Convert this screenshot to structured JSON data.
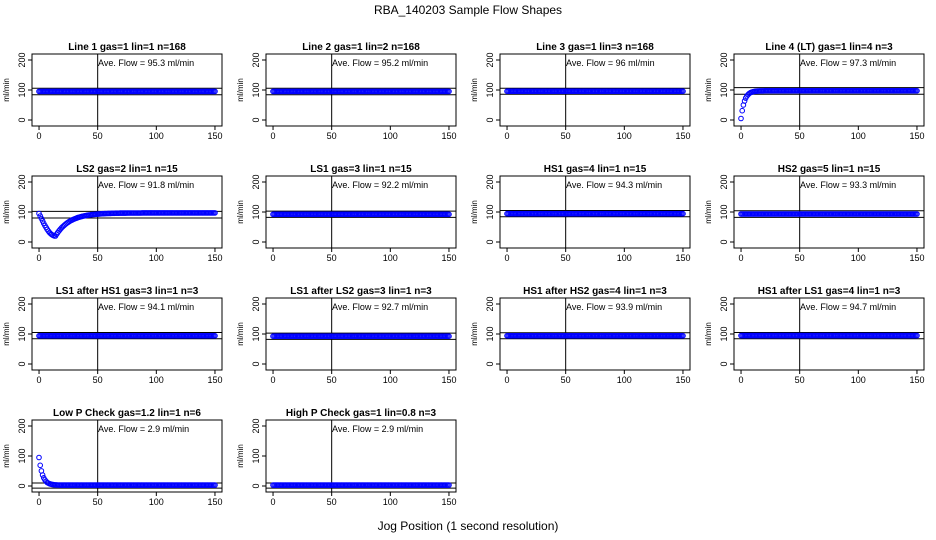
{
  "figure": {
    "suptitle": "RBA_140203  Sample Flow Shapes",
    "xlabel": "Jog Position (1 second resolution)"
  },
  "colors": {
    "points": "#0000ff",
    "axes": "#000000",
    "background": "#ffffff"
  },
  "chart_data": [
    {
      "type": "scatter",
      "title": "Line 1 gas=1 lin=1 n=168",
      "ylabel": "ml/min",
      "annotation": "Ave. Flow = 95.3  ml/min",
      "x_range": [
        0,
        150
      ],
      "ylim": [
        -20,
        220
      ],
      "xticks": [
        "0",
        "50",
        "100",
        "150"
      ],
      "yticks": [
        "0",
        "100",
        "200"
      ],
      "vline_x": 50,
      "hlines": [
        84,
        106
      ],
      "shape": "flat",
      "level": 95.3
    },
    {
      "type": "scatter",
      "title": "Line 2 gas=1 lin=2 n=168",
      "ylabel": "ml/min",
      "annotation": "Ave. Flow = 95.2  ml/min",
      "x_range": [
        0,
        150
      ],
      "ylim": [
        -20,
        220
      ],
      "xticks": [
        "0",
        "50",
        "100",
        "150"
      ],
      "yticks": [
        "0",
        "100",
        "200"
      ],
      "vline_x": 50,
      "hlines": [
        84,
        106
      ],
      "shape": "flat",
      "level": 95.2
    },
    {
      "type": "scatter",
      "title": "Line 3 gas=1 lin=3 n=168",
      "ylabel": "ml/min",
      "annotation": "Ave. Flow = 96  ml/min",
      "x_range": [
        0,
        150
      ],
      "ylim": [
        -20,
        220
      ],
      "xticks": [
        "0",
        "50",
        "100",
        "150"
      ],
      "yticks": [
        "0",
        "100",
        "200"
      ],
      "vline_x": 50,
      "hlines": [
        86,
        106
      ],
      "shape": "flat",
      "level": 96
    },
    {
      "type": "scatter",
      "title": "Line 4 (LT) gas=1 lin=4 n=3",
      "ylabel": "ml/min",
      "annotation": "Ave. Flow = 97.3  ml/min",
      "x_range": [
        0,
        150
      ],
      "ylim": [
        -20,
        220
      ],
      "xticks": [
        "0",
        "50",
        "100",
        "150"
      ],
      "yticks": [
        "0",
        "100",
        "200"
      ],
      "vline_x": 50,
      "hlines": [
        86,
        108
      ],
      "shape": "rise",
      "level": 97.3,
      "start": 5,
      "tau": 3
    },
    {
      "type": "scatter",
      "title": "LS2 gas=2 lin=1 n=15",
      "ylabel": "ml/min",
      "annotation": "Ave. Flow = 91.8  ml/min",
      "x_range": [
        0,
        150
      ],
      "ylim": [
        -20,
        220
      ],
      "xticks": [
        "0",
        "50",
        "100",
        "150"
      ],
      "yticks": [
        "0",
        "100",
        "200"
      ],
      "vline_x": 50,
      "hlines": [
        80,
        102
      ],
      "shape": "dip",
      "level": 97,
      "start": 95,
      "min": 20,
      "min_x": 14
    },
    {
      "type": "scatter",
      "title": "LS1 gas=3 lin=1 n=15",
      "ylabel": "ml/min",
      "annotation": "Ave. Flow = 92.2  ml/min",
      "x_range": [
        0,
        150
      ],
      "ylim": [
        -20,
        220
      ],
      "xticks": [
        "0",
        "50",
        "100",
        "150"
      ],
      "yticks": [
        "0",
        "100",
        "200"
      ],
      "vline_x": 50,
      "hlines": [
        82,
        103
      ],
      "shape": "flat",
      "level": 92.2
    },
    {
      "type": "scatter",
      "title": "HS1 gas=4 lin=1 n=15",
      "ylabel": "ml/min",
      "annotation": "Ave. Flow = 94.3  ml/min",
      "x_range": [
        0,
        150
      ],
      "ylim": [
        -20,
        220
      ],
      "xticks": [
        "0",
        "50",
        "100",
        "150"
      ],
      "yticks": [
        "0",
        "100",
        "200"
      ],
      "vline_x": 50,
      "hlines": [
        84,
        105
      ],
      "shape": "flat",
      "level": 94.3
    },
    {
      "type": "scatter",
      "title": "HS2 gas=5 lin=1 n=15",
      "ylabel": "ml/min",
      "annotation": "Ave. Flow = 93.3  ml/min",
      "x_range": [
        0,
        150
      ],
      "ylim": [
        -20,
        220
      ],
      "xticks": [
        "0",
        "50",
        "100",
        "150"
      ],
      "yticks": [
        "0",
        "100",
        "200"
      ],
      "vline_x": 50,
      "hlines": [
        82,
        104
      ],
      "shape": "flat",
      "level": 93.3
    },
    {
      "type": "scatter",
      "title": "LS1 after HS1 gas=3 lin=1 n=3",
      "ylabel": "ml/min",
      "annotation": "Ave. Flow = 94.1  ml/min",
      "x_range": [
        0,
        150
      ],
      "ylim": [
        -20,
        220
      ],
      "xticks": [
        "0",
        "50",
        "100",
        "150"
      ],
      "yticks": [
        "0",
        "100",
        "200"
      ],
      "vline_x": 50,
      "hlines": [
        84,
        105
      ],
      "shape": "flat",
      "level": 94.1
    },
    {
      "type": "scatter",
      "title": "LS1 after LS2 gas=3 lin=1 n=3",
      "ylabel": "ml/min",
      "annotation": "Ave. Flow = 92.7  ml/min",
      "x_range": [
        0,
        150
      ],
      "ylim": [
        -20,
        220
      ],
      "xticks": [
        "0",
        "50",
        "100",
        "150"
      ],
      "yticks": [
        "0",
        "100",
        "200"
      ],
      "vline_x": 50,
      "hlines": [
        82,
        103
      ],
      "shape": "flat",
      "level": 92.7
    },
    {
      "type": "scatter",
      "title": "HS1 after HS2 gas=4 lin=1 n=3",
      "ylabel": "ml/min",
      "annotation": "Ave. Flow = 93.9  ml/min",
      "x_range": [
        0,
        150
      ],
      "ylim": [
        -20,
        220
      ],
      "xticks": [
        "0",
        "50",
        "100",
        "150"
      ],
      "yticks": [
        "0",
        "100",
        "200"
      ],
      "vline_x": 50,
      "hlines": [
        84,
        104
      ],
      "shape": "flat",
      "level": 93.9
    },
    {
      "type": "scatter",
      "title": "HS1 after LS1 gas=4 lin=1 n=3",
      "ylabel": "ml/min",
      "annotation": "Ave. Flow = 94.7  ml/min",
      "x_range": [
        0,
        150
      ],
      "ylim": [
        -20,
        220
      ],
      "xticks": [
        "0",
        "50",
        "100",
        "150"
      ],
      "yticks": [
        "0",
        "100",
        "200"
      ],
      "vline_x": 50,
      "hlines": [
        84,
        105
      ],
      "shape": "flat",
      "level": 94.7
    },
    {
      "type": "scatter",
      "title": "Low P Check gas=1.2 lin=1 n=6",
      "ylabel": "ml/min",
      "annotation": "Ave. Flow = 2.9  ml/min",
      "x_range": [
        0,
        150
      ],
      "ylim": [
        -20,
        220
      ],
      "xticks": [
        "0",
        "50",
        "100",
        "150"
      ],
      "yticks": [
        "0",
        "100",
        "200"
      ],
      "vline_x": 50,
      "hlines": [
        -7,
        10
      ],
      "shape": "decay",
      "level": 2.9,
      "start": 95,
      "tau": 3
    },
    {
      "type": "scatter",
      "title": "High P Check gas=1 lin=0.8 n=3",
      "ylabel": "ml/min",
      "annotation": "Ave. Flow = 2.9  ml/min",
      "x_range": [
        0,
        150
      ],
      "ylim": [
        -20,
        220
      ],
      "xticks": [
        "0",
        "50",
        "100",
        "150"
      ],
      "yticks": [
        "0",
        "100",
        "200"
      ],
      "vline_x": 50,
      "hlines": [
        -7,
        10
      ],
      "shape": "flat",
      "level": 2.9
    }
  ]
}
